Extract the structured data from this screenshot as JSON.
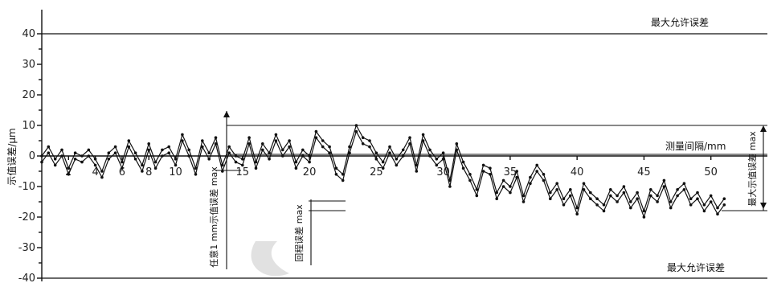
{
  "chart_data": {
    "type": "line",
    "title": "",
    "ylabel": "示值误差/μm",
    "xlabel": "测量间隔/mm",
    "ylim": [
      -40,
      40
    ],
    "xlim": [
      0,
      52
    ],
    "y_ticks": [
      40,
      30,
      20,
      10,
      0,
      -10,
      -20,
      -30,
      -40
    ],
    "y_tick_labels": [
      "40",
      "30",
      "20",
      "10",
      "0",
      "-10",
      "-20",
      "-30",
      "-40"
    ],
    "x_ticks": [
      2,
      4,
      6,
      8,
      10,
      15,
      20,
      25,
      30,
      35,
      40,
      45,
      50
    ],
    "x_tick_labels": [
      "2",
      "4",
      "6",
      "8",
      "10",
      "15",
      "20",
      "25",
      "30",
      "35",
      "40",
      "45",
      "50"
    ],
    "limits": {
      "upper": {
        "value": 40,
        "label": "最大允许误差"
      },
      "lower": {
        "value": -40,
        "label": "最大允许误差"
      }
    },
    "annotations": {
      "interval_label": "测量间隔/mm",
      "any_1mm": "任意1 mm示值误差 max",
      "segment": "回程误差 max",
      "max_error": "最大示值误差 max"
    },
    "series": [
      {
        "x": [
          0,
          0.5,
          1,
          1.5,
          2,
          2.5,
          3,
          3.5,
          4,
          4.5,
          5,
          5.5,
          6,
          6.5,
          7,
          7.5,
          8,
          8.5,
          9,
          9.5,
          10,
          10.5,
          11,
          11.5,
          12,
          12.5,
          13,
          13.5,
          14,
          14.5,
          15,
          15.5,
          16,
          16.5,
          17,
          17.5,
          18,
          18.5,
          19,
          19.5,
          20,
          20.5,
          21,
          21.5,
          22,
          22.5,
          23,
          23.5,
          24,
          24.5,
          25,
          25.5,
          26,
          26.5,
          27,
          27.5,
          28,
          28.5,
          29,
          29.5,
          30,
          30.5,
          31,
          31.5,
          32,
          32.5,
          33,
          33.5,
          34,
          34.5,
          35,
          35.5,
          36,
          36.5,
          37,
          37.5,
          38,
          38.5,
          39,
          39.5,
          40,
          40.5,
          41,
          41.5,
          42,
          42.5,
          43,
          43.5,
          44,
          44.5,
          45,
          45.5,
          46,
          46.5,
          47,
          47.5,
          48,
          48.5,
          49,
          49.5,
          50,
          50.5,
          51
        ],
        "values": [
          0,
          3,
          -1,
          2,
          -4,
          1,
          0,
          2,
          -1,
          -5,
          1,
          3,
          -2,
          5,
          1,
          -3,
          4,
          -2,
          2,
          3,
          -1,
          7,
          2,
          -4,
          5,
          1,
          6,
          -3,
          3,
          0,
          -1,
          6,
          -2,
          4,
          1,
          7,
          2,
          5,
          -2,
          2,
          0,
          8,
          5,
          3,
          -4,
          -6,
          3,
          10,
          6,
          5,
          1,
          -2,
          3,
          -1,
          2,
          6,
          -3,
          7,
          2,
          -1,
          1,
          -8,
          4,
          -2,
          -6,
          -11,
          -3,
          -4,
          -12,
          -8,
          -10,
          -5,
          -13,
          -7,
          -3,
          -6,
          -12,
          -9,
          -14,
          -11,
          -17,
          -9,
          -12,
          -14,
          -16,
          -11,
          -13,
          -10,
          -15,
          -12,
          -18,
          -11,
          -13,
          -8,
          -15,
          -11,
          -9,
          -14,
          -12,
          -16,
          -13,
          -17,
          -14
        ]
      },
      {
        "x": [
          0,
          0.5,
          1,
          1.5,
          2,
          2.5,
          3,
          3.5,
          4,
          4.5,
          5,
          5.5,
          6,
          6.5,
          7,
          7.5,
          8,
          8.5,
          9,
          9.5,
          10,
          10.5,
          11,
          11.5,
          12,
          12.5,
          13,
          13.5,
          14,
          14.5,
          15,
          15.5,
          16,
          16.5,
          17,
          17.5,
          18,
          18.5,
          19,
          19.5,
          20,
          20.5,
          21,
          21.5,
          22,
          22.5,
          23,
          23.5,
          24,
          24.5,
          25,
          25.5,
          26,
          26.5,
          27,
          27.5,
          28,
          28.5,
          29,
          29.5,
          30,
          30.5,
          31,
          31.5,
          32,
          32.5,
          33,
          33.5,
          34,
          34.5,
          35,
          35.5,
          36,
          36.5,
          37,
          37.5,
          38,
          38.5,
          39,
          39.5,
          40,
          40.5,
          41,
          41.5,
          42,
          42.5,
          43,
          43.5,
          44,
          44.5,
          45,
          45.5,
          46,
          46.5,
          47,
          47.5,
          48,
          48.5,
          49,
          49.5,
          50,
          50.5,
          51
        ],
        "values": [
          -2,
          1,
          -3,
          0,
          -6,
          -1,
          -2,
          0,
          -3,
          -7,
          -1,
          1,
          -4,
          3,
          -1,
          -5,
          2,
          -4,
          0,
          1,
          -3,
          5,
          0,
          -6,
          3,
          -1,
          4,
          -5,
          1,
          -2,
          -3,
          4,
          -4,
          2,
          -1,
          5,
          0,
          3,
          -4,
          0,
          -2,
          6,
          3,
          1,
          -6,
          -8,
          1,
          8,
          4,
          3,
          -1,
          -4,
          1,
          -3,
          0,
          4,
          -5,
          5,
          0,
          -3,
          -1,
          -10,
          2,
          -4,
          -8,
          -13,
          -5,
          -6,
          -14,
          -10,
          -12,
          -7,
          -15,
          -9,
          -5,
          -8,
          -14,
          -11,
          -16,
          -13,
          -19,
          -11,
          -14,
          -16,
          -18,
          -13,
          -15,
          -12,
          -17,
          -14,
          -20,
          -13,
          -15,
          -10,
          -17,
          -13,
          -11,
          -16,
          -14,
          -18,
          -15,
          -19,
          -16
        ]
      }
    ]
  }
}
